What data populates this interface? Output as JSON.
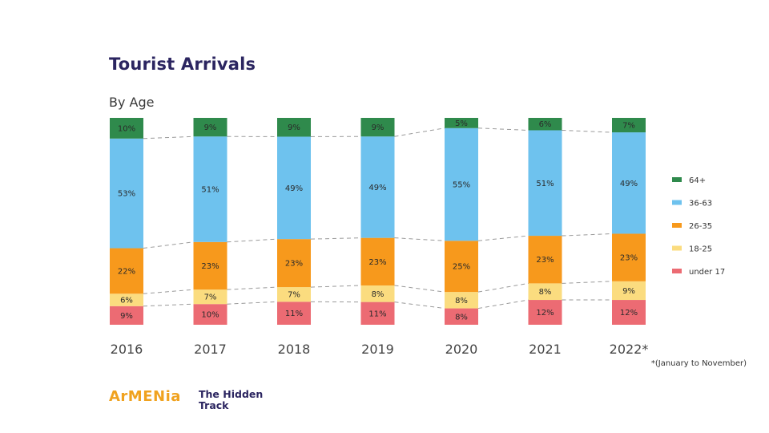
{
  "header": {
    "title": "Tourist Arrivals",
    "subtitle": "By Age"
  },
  "footnote": "*(January to November)",
  "branding": {
    "logo": "ArMENia",
    "tagline_line1": "The Hidden",
    "tagline_line2": "Track"
  },
  "chart_data": {
    "type": "bar",
    "stacked": true,
    "title": "Tourist Arrivals",
    "subtitle": "By Age",
    "xlabel": "",
    "ylabel": "",
    "ylim": [
      0,
      100
    ],
    "grid": false,
    "legend_position": "right",
    "categories": [
      "2016",
      "2017",
      "2018",
      "2019",
      "2020",
      "2021",
      "2022*"
    ],
    "series": [
      {
        "name": "under 17",
        "color": "#ec6b73",
        "values": [
          9,
          10,
          11,
          11,
          8,
          12,
          12
        ]
      },
      {
        "name": "18-25",
        "color": "#fbdc7f",
        "values": [
          6,
          7,
          7,
          8,
          8,
          8,
          9
        ]
      },
      {
        "name": "26-35",
        "color": "#f7991c",
        "values": [
          22,
          23,
          23,
          23,
          25,
          23,
          23
        ]
      },
      {
        "name": "36-63",
        "color": "#6ec2ee",
        "values": [
          53,
          51,
          49,
          49,
          55,
          51,
          49
        ]
      },
      {
        "name": "64+",
        "color": "#2f8a4c",
        "values": [
          10,
          9,
          9,
          9,
          5,
          6,
          7
        ]
      }
    ],
    "legend_order": [
      "64+",
      "36-63",
      "26-35",
      "18-25",
      "under 17"
    ],
    "annotations": [
      "*(January to November)"
    ]
  }
}
